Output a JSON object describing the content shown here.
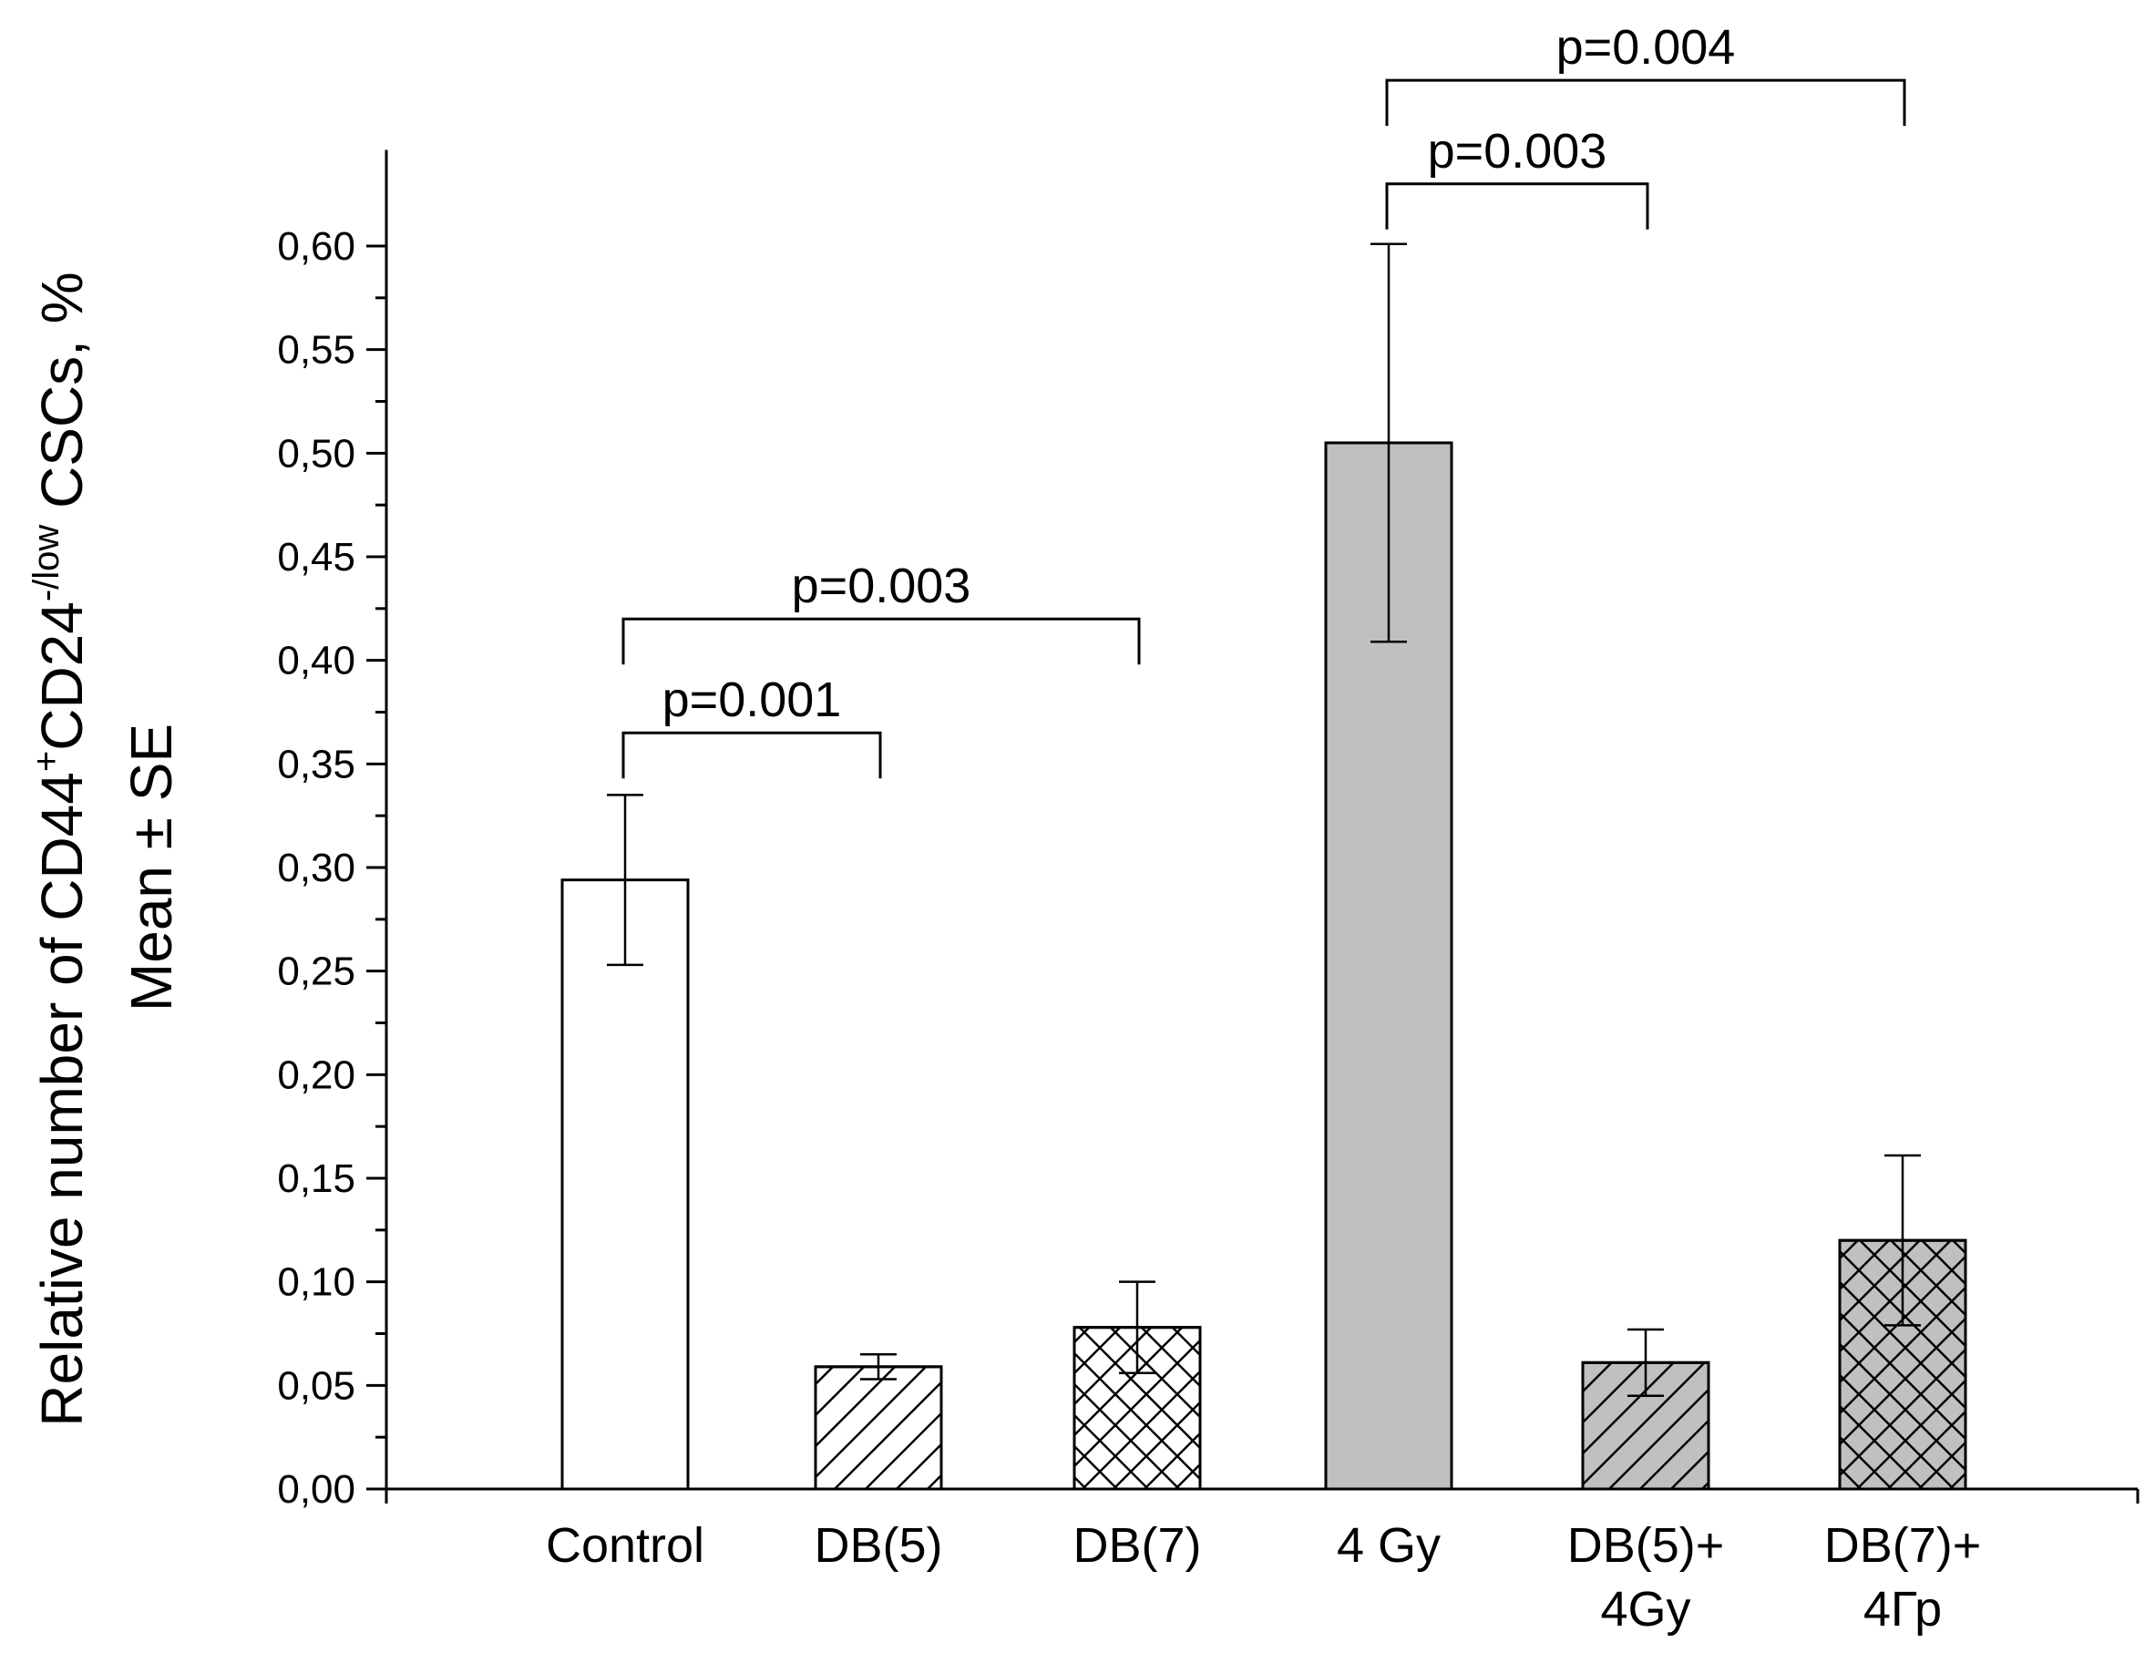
{
  "chart_data": {
    "type": "bar",
    "categories": [
      {
        "line1": "Control",
        "line2": ""
      },
      {
        "line1": "DB(5)",
        "line2": ""
      },
      {
        "line1": "DB(7)",
        "line2": ""
      },
      {
        "line1": "4 Gy",
        "line2": ""
      },
      {
        "line1": "DB(5)+",
        "line2": "4Gy"
      },
      {
        "line1": "DB(7)+",
        "line2": "4Гр"
      }
    ],
    "values": [
      0.294,
      0.059,
      0.078,
      0.505,
      0.061,
      0.12
    ],
    "errors": [
      0.041,
      0.006,
      0.022,
      0.096,
      0.016,
      0.041
    ],
    "fills": [
      "#ffffff",
      "#ffffff",
      "#ffffff",
      "#c0c0c0",
      "#c0c0c0",
      "#c0c0c0"
    ],
    "patterns": [
      "none",
      "diagonal",
      "crosshatch",
      "none",
      "diagonal",
      "crosshatch"
    ],
    "ylim": [
      0,
      0.62
    ],
    "yticks": [
      "0,00",
      "0,05",
      "0,10",
      "0,15",
      "0,20",
      "0,25",
      "0,30",
      "0,35",
      "0,40",
      "0,45",
      "0,50",
      "0,55",
      "0,60"
    ],
    "ytick_values": [
      0,
      0.05,
      0.1,
      0.15,
      0.2,
      0.25,
      0.3,
      0.35,
      0.4,
      0.45,
      0.5,
      0.55,
      0.6
    ],
    "ylabel": {
      "line1_a": "Relative number of CD44",
      "line1_sup1": "+",
      "line1_b": "CD24",
      "line1_sup2": "-/low",
      "line1_c": " CSCs, %",
      "line2": "Mean ± SE"
    },
    "significance": [
      {
        "from": 0,
        "to": 1,
        "label": "p=0.001",
        "level": 0.365
      },
      {
        "from": 0,
        "to": 2,
        "label": "p=0.003",
        "level": 0.42
      },
      {
        "from": 3,
        "to": 4,
        "label": "p=0.003",
        "level": 0.63
      },
      {
        "from": 3,
        "to": 5,
        "label": "p=0.004",
        "level": 0.68
      }
    ]
  }
}
